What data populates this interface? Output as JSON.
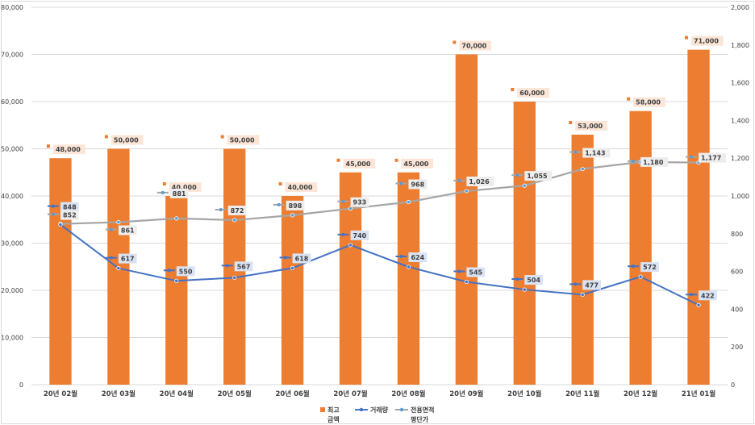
{
  "chart_data": {
    "type": "bar-line-combo",
    "categories": [
      "20년 02월",
      "20년 03월",
      "20년 04월",
      "20년 05월",
      "20년 06월",
      "20년 07월",
      "20년 08월",
      "20년 09월",
      "20년 10월",
      "20년 11월",
      "20년 12월",
      "21년 01월"
    ],
    "left_axis": {
      "ylim": [
        0,
        80000
      ],
      "step": 10000
    },
    "right_axis": {
      "ylim": [
        0,
        2000
      ],
      "step": 200
    },
    "series": [
      {
        "name": "최고 금액",
        "name_lines": [
          "최고",
          "금액"
        ],
        "type": "bar",
        "axis": "left",
        "color": "#ed7d31",
        "values": [
          48000,
          50000,
          40000,
          50000,
          40000,
          45000,
          45000,
          70000,
          60000,
          53000,
          58000,
          71000
        ]
      },
      {
        "name": "거래량",
        "name_lines": [
          "거래량"
        ],
        "type": "line",
        "axis": "right",
        "color": "#4472c4",
        "values": [
          848,
          617,
          550,
          567,
          618,
          740,
          624,
          545,
          504,
          477,
          572,
          422
        ]
      },
      {
        "name": "전용면적 평단가",
        "name_lines": [
          "전용면적",
          "평단가"
        ],
        "type": "line",
        "axis": "right",
        "color": "#a5a5a5",
        "marker_color": "#5b9bd5",
        "values": [
          852,
          861,
          881,
          872,
          898,
          933,
          968,
          1026,
          1055,
          1143,
          1180,
          1177
        ]
      }
    ],
    "legend": "bottom"
  }
}
